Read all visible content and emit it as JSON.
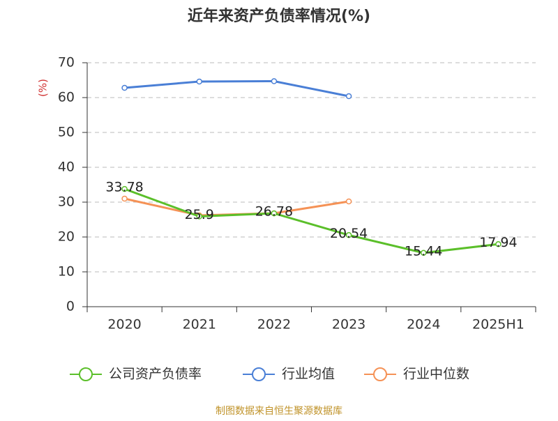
{
  "chart_data": {
    "type": "line",
    "title": "近年来资产负债率情况(%)",
    "ylabel": "(%)",
    "categories": [
      "2020",
      "2021",
      "2022",
      "2023",
      "2024",
      "2025H1"
    ],
    "series": [
      {
        "name": "公司资产负债率",
        "color": "#5bbf2a",
        "values": [
          33.78,
          25.9,
          26.78,
          20.54,
          15.44,
          17.94
        ],
        "data_labels": true
      },
      {
        "name": "行业均值",
        "color": "#4a7fd6",
        "values": [
          62.8,
          64.6,
          64.7,
          60.4,
          null,
          null
        ]
      },
      {
        "name": "行业中位数",
        "color": "#f59256",
        "values": [
          31.0,
          26.2,
          26.8,
          30.2,
          null,
          null
        ]
      }
    ],
    "ylim": [
      0,
      70
    ],
    "yticks": [
      0,
      10,
      20,
      30,
      40,
      50,
      60,
      70
    ],
    "grid": true,
    "legend": "bottom",
    "source": "制图数据来自恒生聚源数据库"
  }
}
